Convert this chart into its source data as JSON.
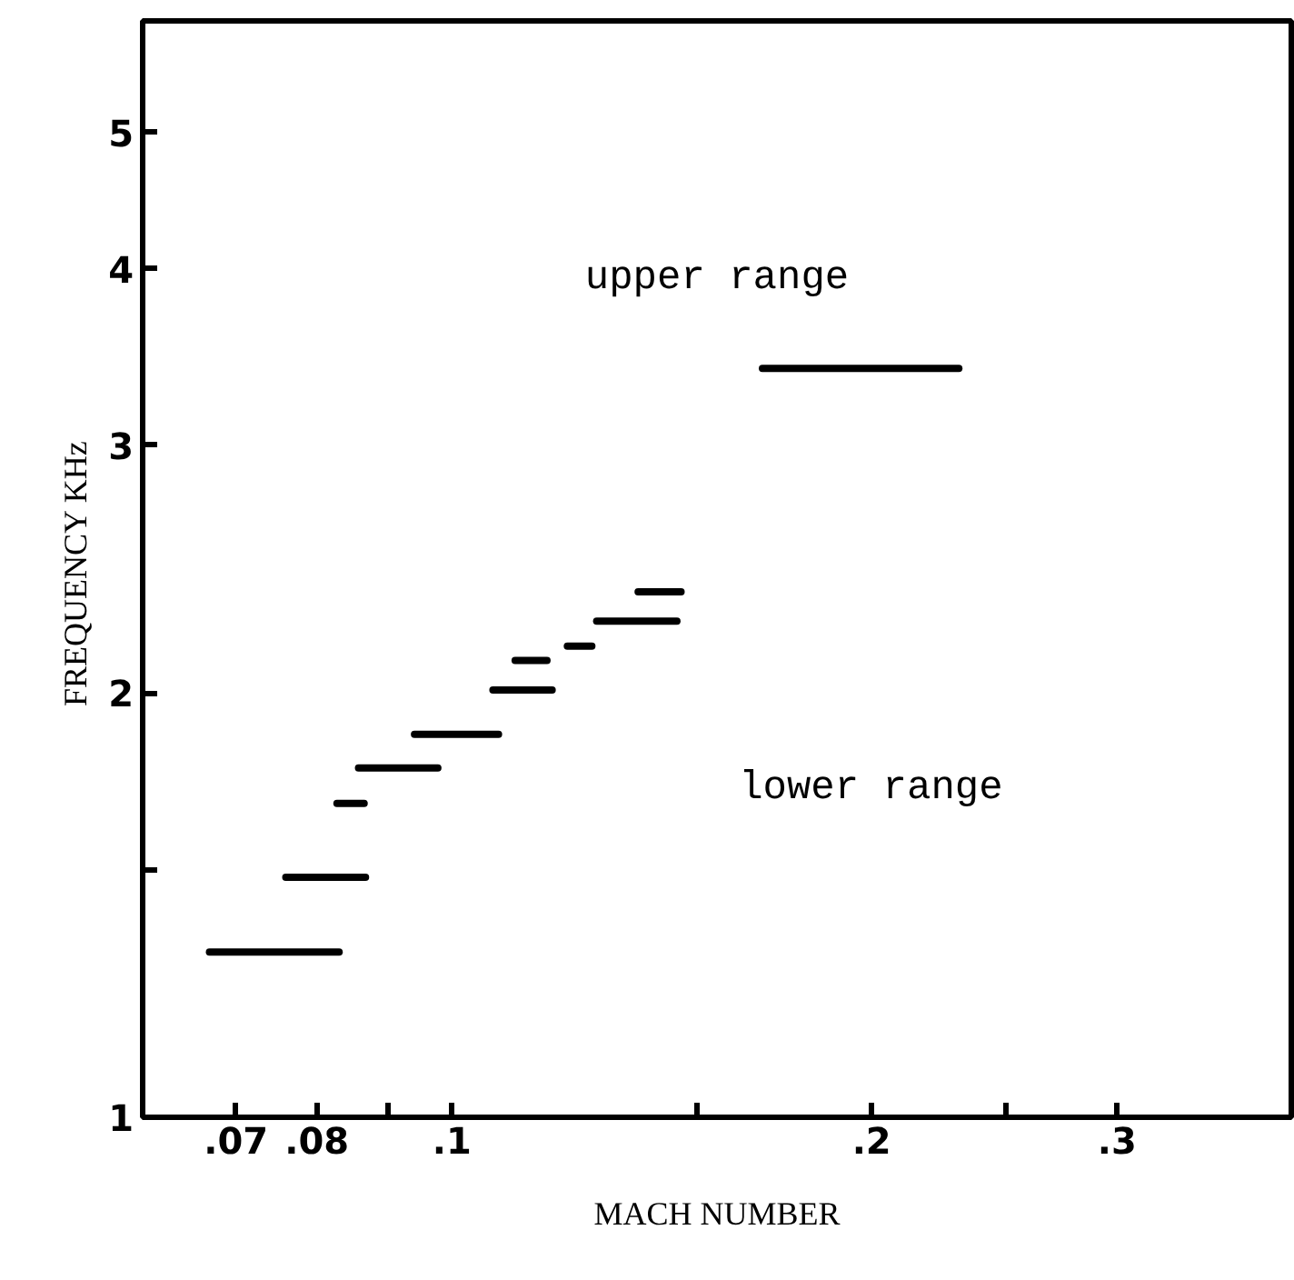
{
  "chart_data": {
    "type": "line",
    "xlabel": "MACH NUMBER",
    "ylabel": "FREQUENCY  KHz",
    "log": "xy",
    "grid": false,
    "marker": "none",
    "line_style": "solid",
    "xlim": [
      0.06,
      0.4
    ],
    "ylim": [
      1,
      6
    ],
    "xticks": [
      {
        "value": 0.07,
        "label": ".07"
      },
      {
        "value": 0.08,
        "label": ".08"
      },
      {
        "value": 0.09,
        "label": null
      },
      {
        "value": 0.1,
        "label": ".1"
      },
      {
        "value": 0.15,
        "label": null
      },
      {
        "value": 0.2,
        "label": ".2"
      },
      {
        "value": 0.25,
        "label": null
      },
      {
        "value": 0.3,
        "label": ".3"
      }
    ],
    "yticks": [
      1,
      {
        "value": 1.5,
        "label": null
      },
      2,
      3,
      4,
      5
    ],
    "annotations": [
      "upper range",
      "lower range"
    ],
    "series": [
      {
        "color": "#000000",
        "x": [
          0.067,
          0.083
        ],
        "values": [
          1.31,
          1.31
        ]
      },
      {
        "color": "#000000",
        "x": [
          0.076,
          0.0867
        ],
        "values": [
          1.48,
          1.48
        ]
      },
      {
        "color": "#000000",
        "x": [
          0.0827,
          0.0865
        ],
        "values": [
          1.67,
          1.67
        ]
      },
      {
        "color": "#000000",
        "x": [
          0.0857,
          0.0977
        ],
        "values": [
          1.77,
          1.77
        ]
      },
      {
        "color": "#000000",
        "x": [
          0.094,
          0.108
        ],
        "values": [
          1.87,
          1.87
        ]
      },
      {
        "color": "#000000",
        "x": [
          0.107,
          0.118
        ],
        "values": [
          2.01,
          2.01
        ]
      },
      {
        "color": "#000000",
        "x": [
          0.111,
          0.117
        ],
        "values": [
          2.11,
          2.11
        ]
      },
      {
        "color": "#000000",
        "x": [
          0.121,
          0.126
        ],
        "values": [
          2.16,
          2.16
        ]
      },
      {
        "color": "#000000",
        "x": [
          0.127,
          0.145
        ],
        "values": [
          2.25,
          2.25
        ]
      },
      {
        "color": "#000000",
        "x": [
          0.136,
          0.146
        ],
        "values": [
          2.36,
          2.36
        ]
      },
      {
        "color": "#000000",
        "x": [
          0.167,
          0.231
        ],
        "values": [
          3.4,
          3.4
        ]
      }
    ]
  }
}
